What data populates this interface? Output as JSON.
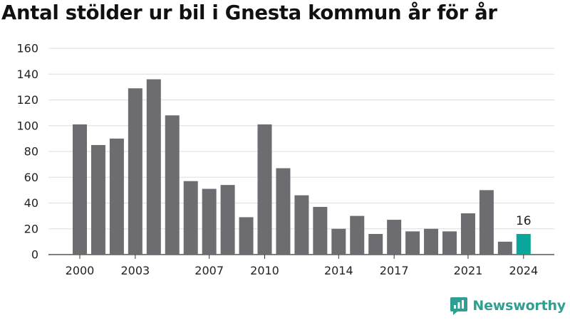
{
  "title": "Antal stölder ur bil i Gnesta kommun år för år",
  "brand": {
    "name": "Newsworthy",
    "icon": "newsworthy-logo-icon",
    "color": "#2e9f91"
  },
  "colors": {
    "bar": "#6d6c71",
    "highlight": "#0ba69b",
    "grid": "#dddddd"
  },
  "chart_data": {
    "type": "bar",
    "title": "Antal stölder ur bil i Gnesta kommun år för år",
    "xlabel": "",
    "ylabel": "",
    "ylim": [
      0,
      160
    ],
    "yticks": [
      0,
      20,
      40,
      60,
      80,
      100,
      120,
      140,
      160
    ],
    "xtick_labels": [
      "2000",
      "2003",
      "2007",
      "2010",
      "2014",
      "2017",
      "2021",
      "2024"
    ],
    "categories": [
      "2000",
      "2001",
      "2002",
      "2003",
      "2004",
      "2005",
      "2006",
      "2007",
      "2008",
      "2009",
      "2010",
      "2011",
      "2012",
      "2013",
      "2014",
      "2015",
      "2016",
      "2017",
      "2018",
      "2019",
      "2020",
      "2021",
      "2022",
      "2023",
      "2024"
    ],
    "values": [
      101,
      85,
      90,
      129,
      136,
      108,
      57,
      51,
      54,
      29,
      101,
      67,
      46,
      37,
      20,
      30,
      16,
      27,
      18,
      20,
      18,
      32,
      50,
      10,
      16
    ],
    "highlight": {
      "category": "2024",
      "label": "16"
    },
    "grid": true,
    "legend": "none"
  }
}
